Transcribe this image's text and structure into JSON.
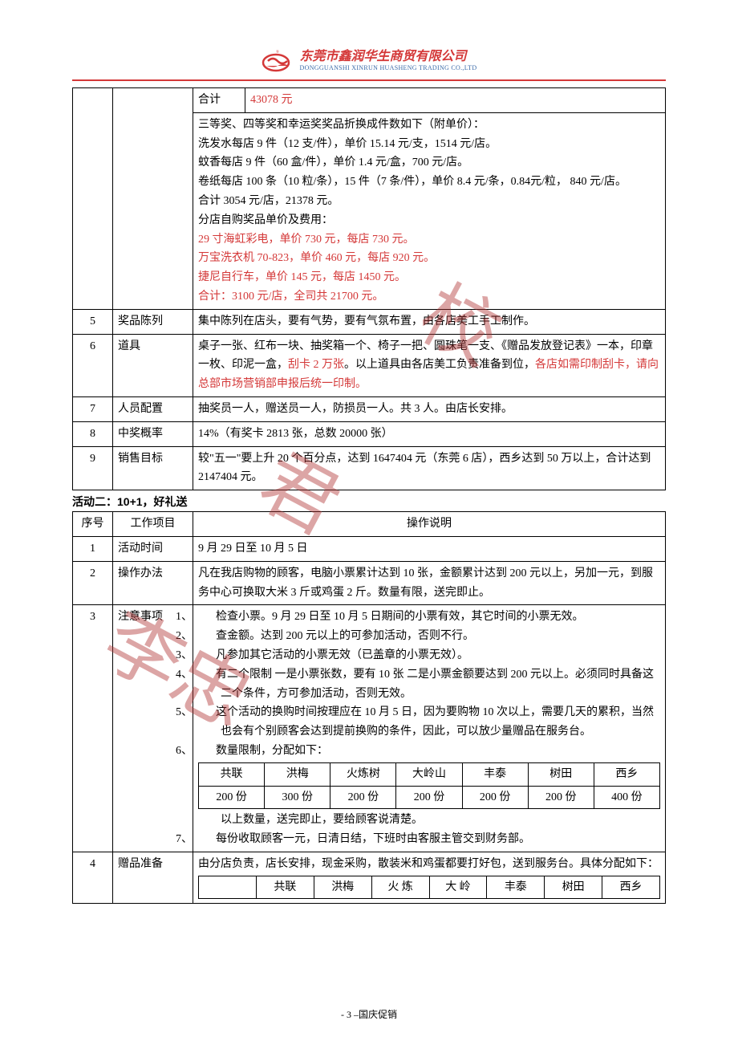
{
  "header": {
    "company_cn": "东莞市鑫润华生商贸有限公司",
    "company_en": "DONGGUANSHI XINRUN HUASHENG TRADING CO.,LTD",
    "logo_color": "#d43838",
    "logo_accent": "#3a6aa8"
  },
  "watermark": [
    "校",
    "君",
    "李忠"
  ],
  "colors": {
    "red_text": "#d43838",
    "border": "#000000",
    "body_text": "#000000"
  },
  "table1_top": {
    "sub_label": "合计",
    "sub_value": "43078 元",
    "desc_lines": [
      {
        "t": "三等奖、四等奖和幸运奖奖品折换成件数如下（附单价）：",
        "red": false
      },
      {
        "t": "洗发水每店 9 件（12 支/件），单价 15.14 元/支，1514 元/店。",
        "red": false
      },
      {
        "t": "蚊香每店 9 件（60 盒/件），单价 1.4 元/盒，700 元/店。",
        "red": false
      },
      {
        "t": "卷纸每店 100 条（10 粒/条），15 件（7 条/件），单价 8.4 元/条，0.84元/粒， 840 元/店。",
        "red": false
      },
      {
        "t": "合计 3054 元/店，21378 元。",
        "red": false
      },
      {
        "t": "分店自购奖品单价及费用：",
        "red": false
      },
      {
        "t": "29 寸海虹彩电，单价 730 元，每店 730 元。",
        "red": true
      },
      {
        "t": "万宝洗衣机 70-823，单价 460 元，每店 920 元。",
        "red": true
      },
      {
        "t": "捷尼自行车，单价 145 元，每店 1450 元。",
        "red": true
      },
      {
        "t": "合计：3100 元/店，全司共 21700 元。",
        "red": true
      }
    ]
  },
  "table1_rows": [
    {
      "n": "5",
      "item": "奖品陈列",
      "desc": "集中陈列在店头，要有气势，要有气氛布置，由各店美工手工制作。"
    },
    {
      "n": "6",
      "item": "道具",
      "desc_parts": [
        {
          "t": "桌子一张、红布一块、抽奖箱一个、椅子一把、圆珠笔一支、《赠品发放登记表》一本，印章一枚、印泥一盒，",
          "red": false
        },
        {
          "t": "刮卡 2 万张",
          "red": true
        },
        {
          "t": "。以上道具由各店美工负责准备到位，",
          "red": false
        },
        {
          "t": "各店如需印制刮卡，请向总部市场营销部申报后统一印制。",
          "red": true
        }
      ]
    },
    {
      "n": "7",
      "item": "人员配置",
      "desc": "抽奖员一人，赠送员一人，防损员一人。共 3 人。由店长安排。"
    },
    {
      "n": "8",
      "item": "中奖概率",
      "desc": "14%（有奖卡 2813 张，总数 20000 张）"
    },
    {
      "n": "9",
      "item": "销售目标",
      "desc": "较\"五一\"要上升 20 个百分点，达到 1647404 元（东莞 6 店），西乡达到 50 万以上，合计达到 2147404 元。"
    }
  ],
  "activity2": {
    "title": "活动二：10+1，好礼送",
    "headers": [
      "序号",
      "工作项目",
      "操作说明"
    ],
    "rows": [
      {
        "n": "1",
        "item": "活动时间",
        "desc": "9 月 29 日至 10 月 5 日"
      },
      {
        "n": "2",
        "item": "操作办法",
        "desc": "凡在我店购物的顾客，电脑小票累计达到 10 张，金额累计达到 200 元以上，另加一元，到服务中心可换取大米 3 斤或鸡蛋 2 斤。数量有限，送完即止。"
      },
      {
        "n": "3",
        "item": "注意事项",
        "list": [
          "检查小票。9 月 29 日至 10 月 5 日期间的小票有效，其它时间的小票无效。",
          "查金额。达到 200 元以上的可参加活动，否则不行。",
          "凡参加其它活动的小票无效（已盖章的小票无效）。",
          "有二个限制  一是小票张数，要有 10 张  二是小票金额要达到 200 元以上。必须同时具备这二个条件，方可参加活动，否则无效。",
          "这个活动的换购时间按理应在 10 月 5 日，因为要购物 10 次以上，需要几天的累积，当然也会有个别顾客会达到提前换购的条件，因此，可以放少量赠品在服务台。",
          "数量限制，分配如下："
        ],
        "inner_table": {
          "headers": [
            "共联",
            "洪梅",
            "火炼树",
            "大岭山",
            "丰泰",
            "树田",
            "西乡"
          ],
          "row": [
            "200 份",
            "300 份",
            "200 份",
            "200 份",
            "200 份",
            "200 份",
            "400 份"
          ]
        },
        "after_table": "以上数量，送完即止，要给顾客说清楚。",
        "item7": "每份收取顾客一元，日清日结，下班时由客服主管交到财务部。"
      },
      {
        "n": "4",
        "item": "赠品准备",
        "desc": "由分店负责，店长安排，现金采购，散装米和鸡蛋都要打好包，送到服务台。具体分配如下：",
        "inner_table2": {
          "headers": [
            "",
            "共联",
            "洪梅",
            "火 炼",
            "大 岭",
            "丰泰",
            "树田",
            "西乡"
          ]
        }
      }
    ]
  },
  "footer": "- 3 –国庆促销"
}
